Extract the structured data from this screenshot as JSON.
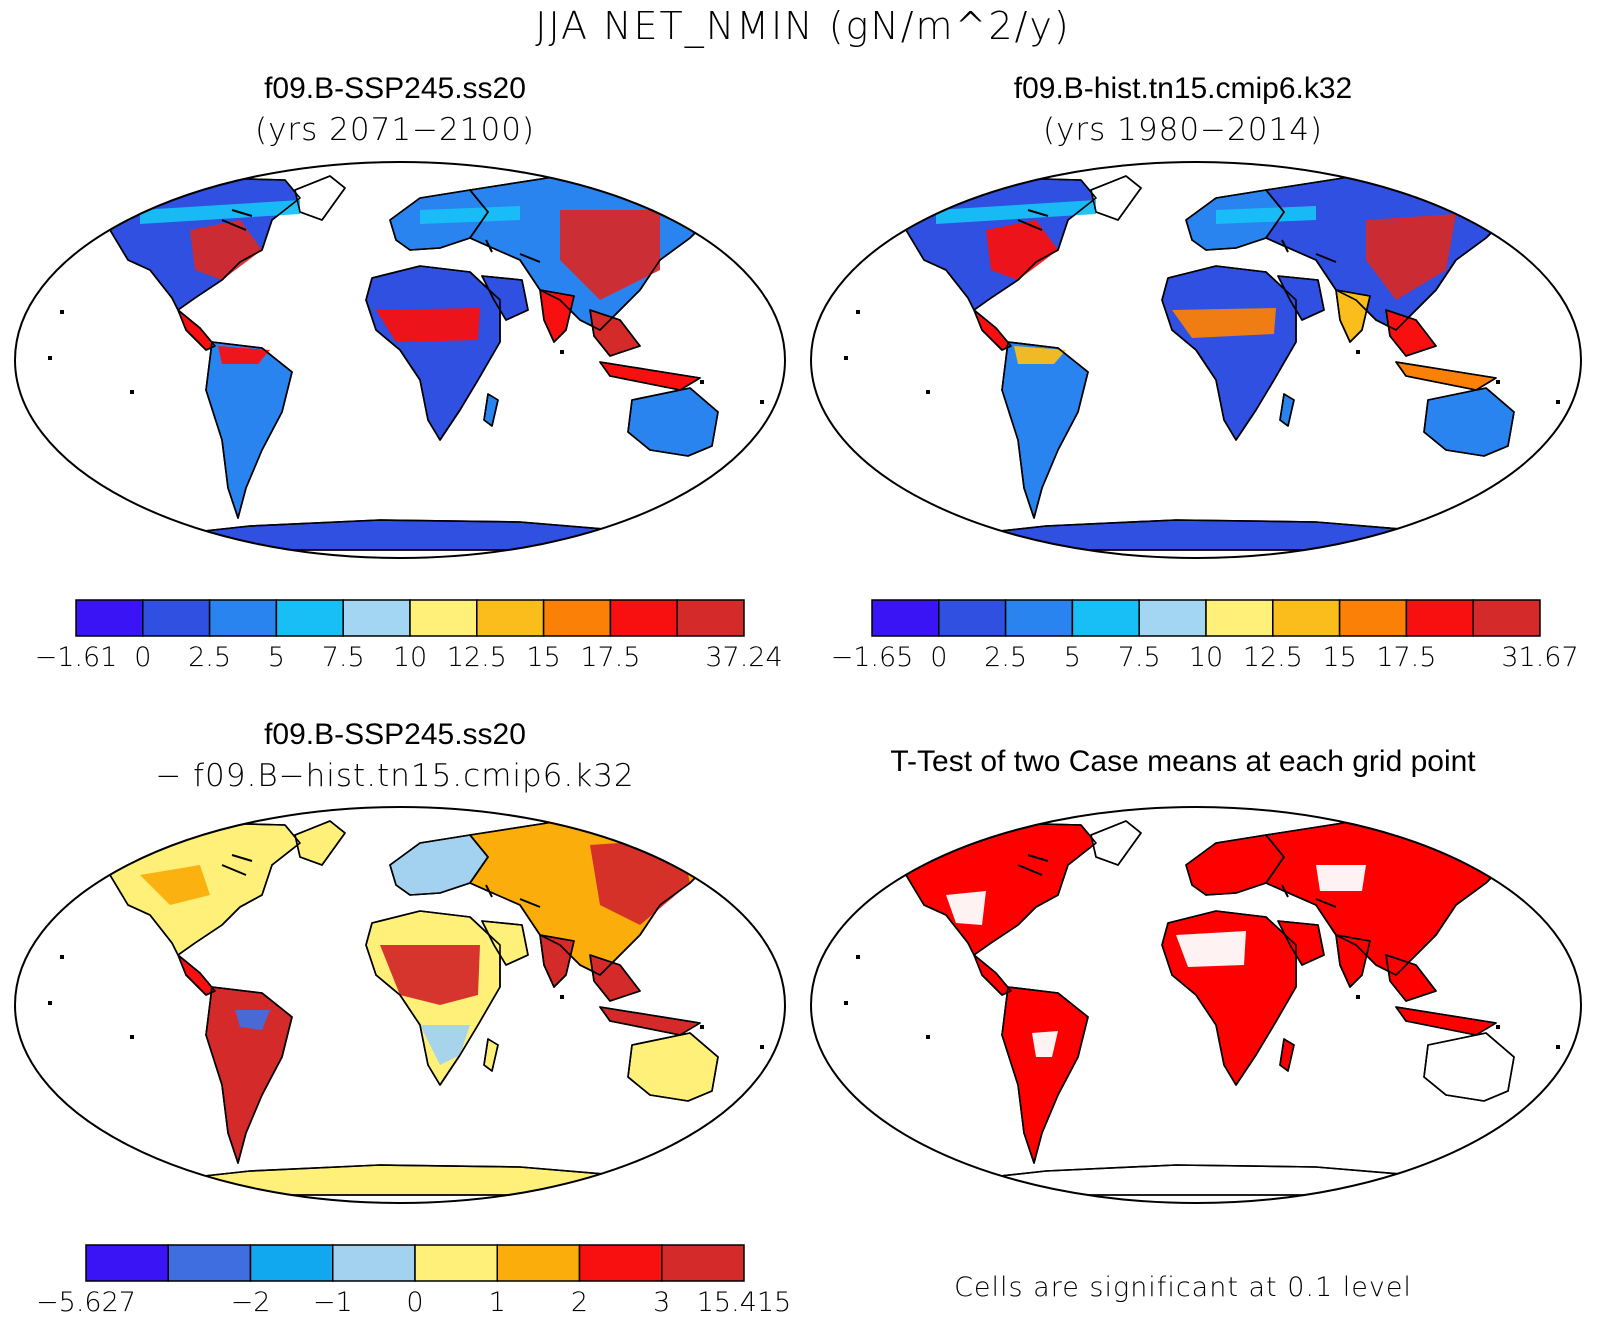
{
  "title": "JJA NET_NMIN (gN/m^2/y)",
  "panels": [
    {
      "title": "f09.B-SSP245.ss20",
      "subtitle": "(yrs 2071−2100)",
      "colorbar": {
        "colors": [
          "#3b14f5",
          "#2f50e0",
          "#2a84ef",
          "#18bff7",
          "#a2d6f2",
          "#fff07a",
          "#fbbd1b",
          "#fb8008",
          "#f81010",
          "#d42a2a"
        ],
        "labels": [
          "−1.61",
          "0",
          "2.5",
          "5",
          "7.5",
          "10",
          "12.5",
          "15",
          "17.5",
          "",
          "37.24"
        ]
      }
    },
    {
      "title": "f09.B-hist.tn15.cmip6.k32",
      "subtitle": "(yrs 1980−2014)",
      "colorbar": {
        "colors": [
          "#3b14f5",
          "#2f50e0",
          "#2a84ef",
          "#18bff7",
          "#a2d6f2",
          "#fff07a",
          "#fbbd1b",
          "#fb8008",
          "#f81010",
          "#d42a2a"
        ],
        "labels": [
          "−1.65",
          "0",
          "2.5",
          "5",
          "7.5",
          "10",
          "12.5",
          "15",
          "17.5",
          "",
          "31.67"
        ]
      }
    },
    {
      "title": "f09.B-SSP245.ss20",
      "subtitle": "− f09.B−hist.tn15.cmip6.k32",
      "colorbar": {
        "colors": [
          "#3b14f5",
          "#3f6ee0",
          "#12a8ef",
          "#a2d2f0",
          "#fff07a",
          "#fbad0b",
          "#f81010",
          "#d42a2a"
        ],
        "labels": [
          "−5.627",
          "",
          "−2",
          "−1",
          "0",
          "1",
          "2",
          "3",
          "15.415"
        ]
      }
    },
    {
      "title": "T-Test of two Case means at each grid point",
      "note": "Cells are significant at 0.1 level"
    }
  ],
  "colors": {
    "land_low": "#2f50e0",
    "land_mid": "#fff07a",
    "land_high": "#d42a2a",
    "significant": "#ff0000",
    "coast": "#000000"
  }
}
